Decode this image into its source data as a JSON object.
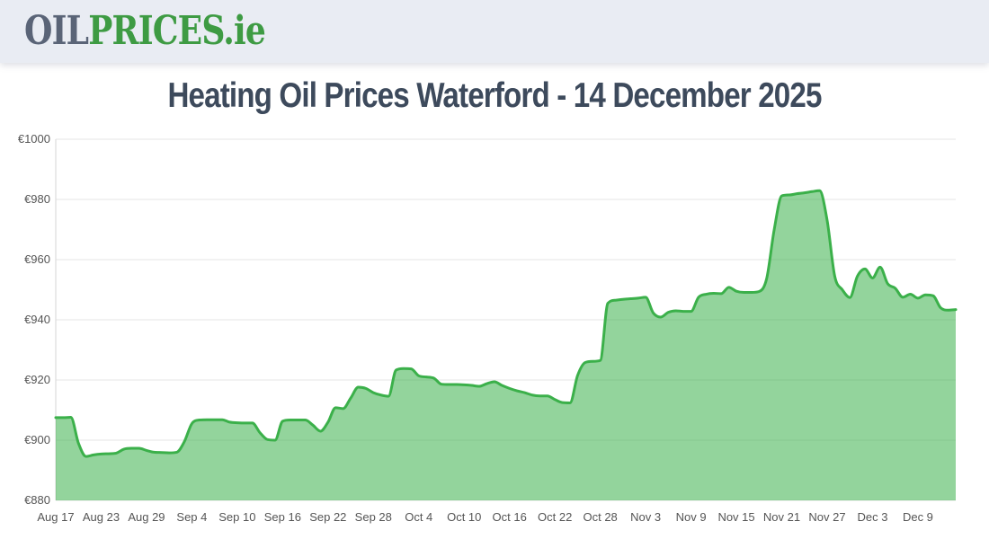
{
  "header": {
    "logo_oil": "OIL",
    "logo_prices": "PRICES",
    "logo_domain": ".ie"
  },
  "title": "Heating Oil Prices Waterford - 14 December 2025",
  "colors": {
    "header_bg": "#e9ecf3",
    "logo_oil": "#5a6477",
    "logo_green": "#3e9b43",
    "title": "#3d4a5c",
    "line": "#3bb04a",
    "fill": "rgba(59,176,74,0.55)",
    "grid": "#e4e4e4",
    "axis_line": "#d6d6d6",
    "label": "#555555",
    "page_bg": "#ffffff"
  },
  "chart_data": {
    "type": "area",
    "title": "Heating Oil Prices Waterford - 14 December 2025",
    "xlabel": "",
    "ylabel": "",
    "currency_prefix": "€",
    "ylim": [
      880,
      1000
    ],
    "y_tick_values": [
      1000,
      980,
      960,
      940,
      920,
      900,
      880
    ],
    "grid": true,
    "legend": false,
    "x_unit": "days (daily prices, Aug 17 to Dec 14)",
    "x_ticks": [
      {
        "label": "Aug 17",
        "day": 0
      },
      {
        "label": "Aug 23",
        "day": 6
      },
      {
        "label": "Aug 29",
        "day": 12
      },
      {
        "label": "Sep 4",
        "day": 18
      },
      {
        "label": "Sep 10",
        "day": 24
      },
      {
        "label": "Sep 16",
        "day": 30
      },
      {
        "label": "Sep 22",
        "day": 36
      },
      {
        "label": "Sep 28",
        "day": 42
      },
      {
        "label": "Oct 4",
        "day": 48
      },
      {
        "label": "Oct 10",
        "day": 54
      },
      {
        "label": "Oct 16",
        "day": 60
      },
      {
        "label": "Oct 22",
        "day": 66
      },
      {
        "label": "Oct 28",
        "day": 72
      },
      {
        "label": "Nov 3",
        "day": 78
      },
      {
        "label": "Nov 9",
        "day": 84
      },
      {
        "label": "Nov 15",
        "day": 90
      },
      {
        "label": "Nov 21",
        "day": 96
      },
      {
        "label": "Nov 27",
        "day": 102
      },
      {
        "label": "Dec 3",
        "day": 108
      },
      {
        "label": "Dec 9",
        "day": 114
      }
    ],
    "values": [
      907.5,
      907.5,
      907.6,
      899.0,
      894.6,
      895.1,
      895.4,
      895.5,
      895.7,
      897.0,
      897.3,
      897.3,
      896.6,
      896.0,
      895.9,
      895.8,
      896.0,
      899.5,
      905.5,
      906.7,
      906.8,
      906.8,
      906.8,
      906.0,
      905.8,
      905.7,
      905.7,
      902.5,
      900.2,
      900.0,
      906.3,
      906.7,
      906.7,
      906.7,
      905.0,
      903.0,
      906.0,
      910.8,
      910.5,
      914.0,
      917.6,
      917.2,
      915.8,
      915.0,
      914.6,
      923.3,
      923.8,
      923.7,
      921.4,
      921.0,
      920.6,
      918.6,
      918.5,
      918.5,
      918.4,
      918.2,
      917.9,
      918.8,
      919.4,
      918.2,
      917.2,
      916.4,
      915.8,
      915.0,
      914.7,
      914.7,
      913.5,
      912.5,
      912.4,
      921.5,
      925.8,
      926.2,
      926.5,
      945.5,
      946.5,
      946.8,
      947.0,
      947.2,
      947.5,
      942.3,
      940.9,
      942.5,
      943.0,
      942.8,
      942.8,
      947.5,
      948.5,
      948.8,
      948.7,
      950.8,
      949.5,
      949.1,
      949.1,
      949.4,
      953.7,
      970.0,
      981.2,
      981.5,
      981.9,
      982.2,
      982.6,
      982.9,
      973.0,
      954.5,
      950.0,
      947.4,
      954.5,
      956.9,
      953.9,
      957.5,
      952.0,
      950.5,
      947.5,
      948.5,
      947.2,
      948.3,
      948.0,
      944.0,
      943.2,
      943.4
    ]
  }
}
